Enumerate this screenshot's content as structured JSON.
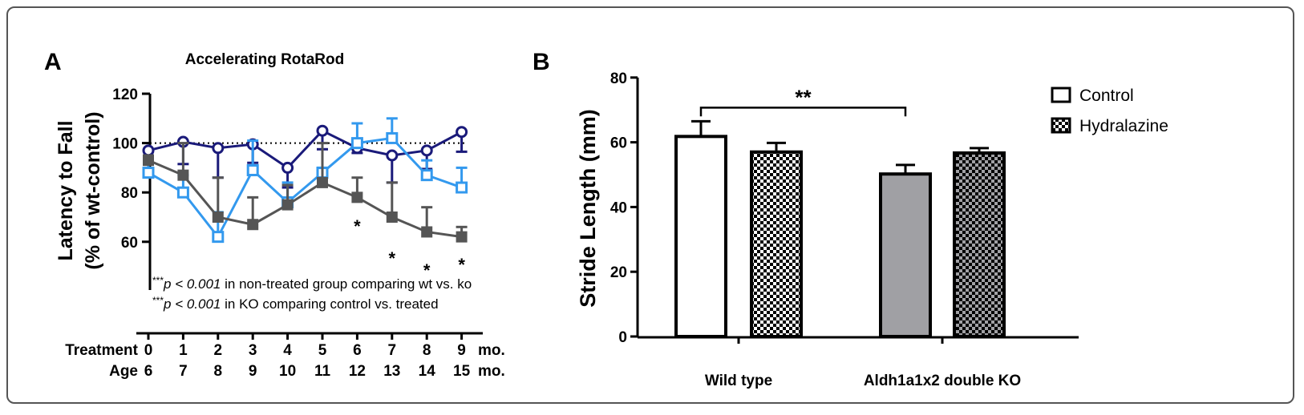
{
  "chart_data": [
    {
      "panel_label": "A",
      "type": "line",
      "title": "Accelerating RotaRod",
      "ylabel": "Latency to Fall",
      "ylabel2": "(% of wt-control)",
      "ylim": [
        50,
        120
      ],
      "yticks": [
        60,
        80,
        100,
        120
      ],
      "reference_line": 100,
      "x": [
        0,
        1,
        2,
        3,
        4,
        5,
        6,
        7,
        8,
        9
      ],
      "x_rows": [
        {
          "label": "Treatment",
          "ticks": [
            "0",
            "1",
            "2",
            "3",
            "4",
            "5",
            "6",
            "7",
            "8",
            "9"
          ],
          "unit": "mo."
        },
        {
          "label": "Age",
          "ticks": [
            "6",
            "7",
            "8",
            "9",
            "10",
            "11",
            "12",
            "13",
            "14",
            "15"
          ],
          "unit": "mo."
        }
      ],
      "series": [
        {
          "color": "#1a1a7a",
          "marker": "open-circle",
          "values": [
            97,
            100.5,
            98,
            99.5,
            90,
            105,
            98,
            95,
            97,
            104.5
          ],
          "errors": [
            9,
            9,
            12,
            7.5,
            8,
            7.5,
            2,
            11,
            7.5,
            8
          ]
        },
        {
          "color": "#3399ee",
          "marker": "open-square",
          "values": [
            88,
            80,
            62,
            89,
            76,
            88,
            100,
            102,
            87,
            82
          ],
          "errors": [
            7,
            7,
            10,
            12,
            8,
            2,
            8,
            8,
            6,
            8
          ]
        },
        {
          "color": "#555555",
          "marker": "filled-square",
          "values": [
            93,
            87,
            70,
            67,
            75,
            84,
            78,
            70,
            64,
            62
          ],
          "errors": [
            2,
            13,
            16,
            11,
            8,
            16,
            8,
            14,
            10,
            4
          ]
        }
      ],
      "significance": [
        {
          "x": 6,
          "label": "*"
        },
        {
          "x": 7,
          "label": "*"
        },
        {
          "x": 8,
          "label": "*"
        },
        {
          "x": 9,
          "label": "*"
        }
      ],
      "notes": [
        {
          "stars": "***",
          "p": "p < 0.001",
          "text": " in non-treated group comparing wt vs. ko"
        },
        {
          "stars": "***",
          "p": "p < 0.001",
          "text": " in KO comparing control vs. treated"
        }
      ]
    },
    {
      "panel_label": "B",
      "type": "bar",
      "ylabel": "Stride Length (mm)",
      "ylim": [
        0,
        80
      ],
      "yticks": [
        0,
        20,
        40,
        60,
        80
      ],
      "categories": [
        "Wild type",
        "Aldh1a1x2 double KO"
      ],
      "series": [
        {
          "name": "Control",
          "values": [
            61.8,
            50.2
          ],
          "errors": [
            4.7,
            2.8
          ]
        },
        {
          "name": "Hydralazine",
          "values": [
            57,
            56.7
          ],
          "errors": [
            2.8,
            1.5
          ]
        }
      ],
      "bar_colors": [
        "#ffffff",
        "#a0a0a4"
      ],
      "significance": {
        "label": "**",
        "between": [
          "Wild type Control",
          "Aldh1a1x2 double KO Control"
        ]
      },
      "legend": "top-right"
    }
  ]
}
